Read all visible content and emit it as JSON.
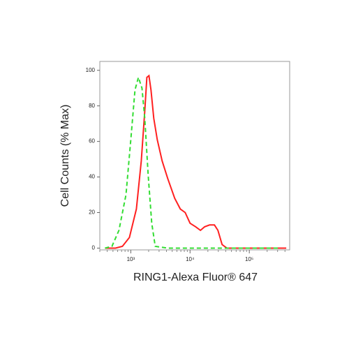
{
  "chart_data": {
    "type": "line",
    "x_label": "RING1-Alexa Fluor® 647",
    "y_label": "Cell Counts (% Max)",
    "x_scale": "log",
    "xlim": [
      300,
      480000
    ],
    "ylim": [
      -1,
      105
    ],
    "xticks": [
      {
        "value": 1000,
        "label": "10³"
      },
      {
        "value": 10000,
        "label": "10⁴"
      },
      {
        "value": 100000,
        "label": "10⁵"
      }
    ],
    "x_minor_ticks": [
      300,
      400,
      500,
      600,
      700,
      800,
      900,
      2000,
      3000,
      4000,
      5000,
      6000,
      7000,
      8000,
      9000,
      20000,
      30000,
      40000,
      50000,
      60000,
      70000,
      80000,
      90000,
      200000,
      300000,
      400000
    ],
    "yticks": [
      0,
      20,
      40,
      60,
      80,
      100
    ],
    "series": [
      {
        "color": "#ff2020",
        "dash": "solid",
        "x": [
          367,
          551,
          723,
          947,
          1242,
          1501,
          1719,
          1866,
          2023,
          2193,
          2445,
          2800,
          3381,
          4207,
          5508,
          6839,
          8272,
          10000,
          12416,
          15000,
          17650,
          21330,
          25800,
          29560,
          34750,
          42070,
          420700
        ],
        "values": [
          0,
          0,
          1,
          6,
          22,
          49,
          77,
          96,
          97,
          89,
          73,
          61,
          49,
          39,
          28,
          22,
          20,
          14,
          12,
          10,
          12,
          13,
          13,
          10,
          2,
          0,
          0
        ]
      },
      {
        "color": "#33dd33",
        "dash": "dashed",
        "x": [
          367,
          481,
          631,
          829,
          1000,
          1176,
          1346,
          1542,
          1719,
          1967,
          2254,
          2582,
          4207,
          320000
        ],
        "values": [
          0,
          1,
          10,
          30,
          61,
          89,
          96,
          90,
          73,
          41,
          14,
          1,
          0,
          0
        ]
      }
    ]
  }
}
